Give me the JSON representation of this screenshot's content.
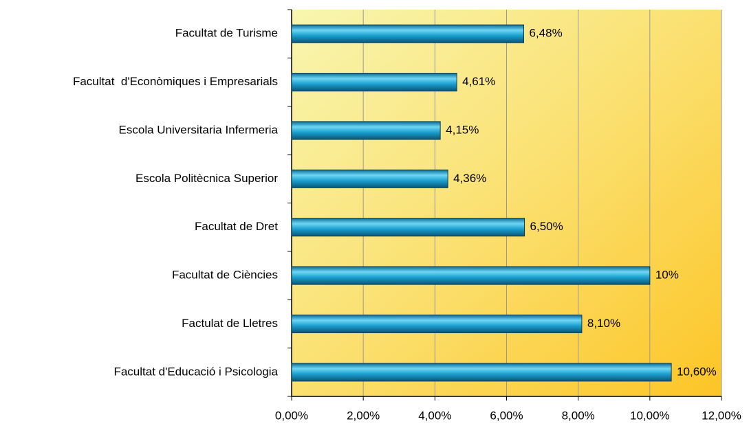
{
  "chart_data": {
    "type": "bar",
    "orientation": "horizontal",
    "categories": [
      "Facultat de Turisme",
      "Facultat  d'Econòmiques i Empresarials",
      "Escola Universitaria Infermeria",
      "Escola Politècnica Superior",
      "Facultat de Dret",
      "Facultat de Ciències",
      "Factulat de Lletres",
      "Facultat d'Educació i Psicologia"
    ],
    "values": [
      6.48,
      4.61,
      4.15,
      4.36,
      6.5,
      10,
      8.1,
      10.6
    ],
    "value_labels": [
      "6,48%",
      "4,61%",
      "4,15%",
      "4,36%",
      "6,50%",
      "10%",
      "8,10%",
      "10,60%"
    ],
    "color": "#1a9ccc",
    "xlim": [
      0,
      12
    ],
    "xticks": [
      {
        "value": 0,
        "label": "0,00%"
      },
      {
        "value": 2,
        "label": "2,00%"
      },
      {
        "value": 4,
        "label": "4,00%"
      },
      {
        "value": 6,
        "label": "6,00%"
      },
      {
        "value": 8,
        "label": "8,00%"
      },
      {
        "value": 10,
        "label": "10,00%"
      },
      {
        "value": 12,
        "label": "12,00%"
      }
    ],
    "grid": true
  }
}
